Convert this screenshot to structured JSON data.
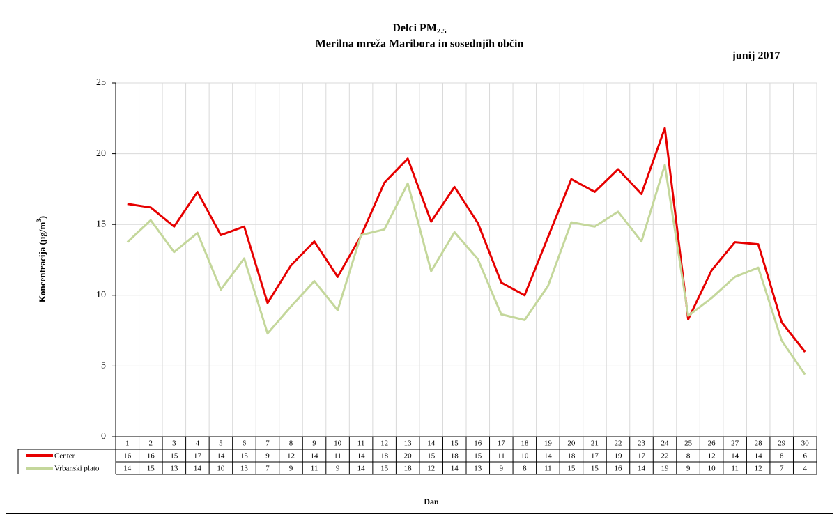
{
  "chart_data": {
    "type": "line",
    "title": "Delci PM",
    "title_subscript": "2.5",
    "subtitle": "Merilna mreža Maribora in sosednjih občin",
    "annotation": "junij 2017",
    "ylabel": "Koncentracija (µg/m",
    "ylabel_superscript": "3",
    "ylabel_end": ")",
    "xlabel": "Dan",
    "categories": [
      "1",
      "2",
      "3",
      "4",
      "5",
      "6",
      "7",
      "8",
      "9",
      "10",
      "11",
      "12",
      "13",
      "14",
      "15",
      "16",
      "17",
      "18",
      "19",
      "20",
      "21",
      "22",
      "23",
      "24",
      "25",
      "26",
      "27",
      "28",
      "29",
      "30"
    ],
    "series": [
      {
        "name": "Center",
        "color": "#e60000",
        "values": [
          16.45,
          16.2,
          14.85,
          17.3,
          14.25,
          14.85,
          9.45,
          12.1,
          13.8,
          11.3,
          14.2,
          17.95,
          19.65,
          15.2,
          17.65,
          15.1,
          10.9,
          10.0,
          14.1,
          18.2,
          17.3,
          18.9,
          17.15,
          21.8,
          8.3,
          11.75,
          13.75,
          13.6,
          8.1,
          6.0
        ],
        "value_labels": [
          "16",
          "16",
          "15",
          "17",
          "14",
          "15",
          "9",
          "12",
          "14",
          "11",
          "14",
          "18",
          "20",
          "15",
          "18",
          "15",
          "11",
          "10",
          "14",
          "18",
          "17",
          "19",
          "17",
          "22",
          "8",
          "12",
          "14",
          "14",
          "8",
          "6"
        ]
      },
      {
        "name": "Vrbanski plato",
        "color": "#c4d79b",
        "values": [
          13.75,
          15.3,
          13.05,
          14.4,
          10.4,
          12.6,
          7.3,
          9.2,
          11.0,
          8.95,
          14.25,
          14.65,
          17.9,
          11.7,
          14.45,
          12.55,
          8.65,
          8.25,
          10.65,
          15.15,
          14.85,
          15.9,
          13.8,
          19.2,
          8.55,
          9.8,
          11.3,
          11.95,
          6.8,
          4.4
        ],
        "value_labels": [
          "14",
          "15",
          "13",
          "14",
          "10",
          "13",
          "7",
          "9",
          "11",
          "9",
          "14",
          "15",
          "18",
          "12",
          "14",
          "13",
          "9",
          "8",
          "11",
          "15",
          "15",
          "16",
          "14",
          "19",
          "9",
          "10",
          "11",
          "12",
          "7",
          "4"
        ]
      }
    ],
    "ylim": [
      0,
      25
    ],
    "yticks": [
      0,
      5,
      10,
      15,
      20,
      25
    ],
    "grid": true
  }
}
